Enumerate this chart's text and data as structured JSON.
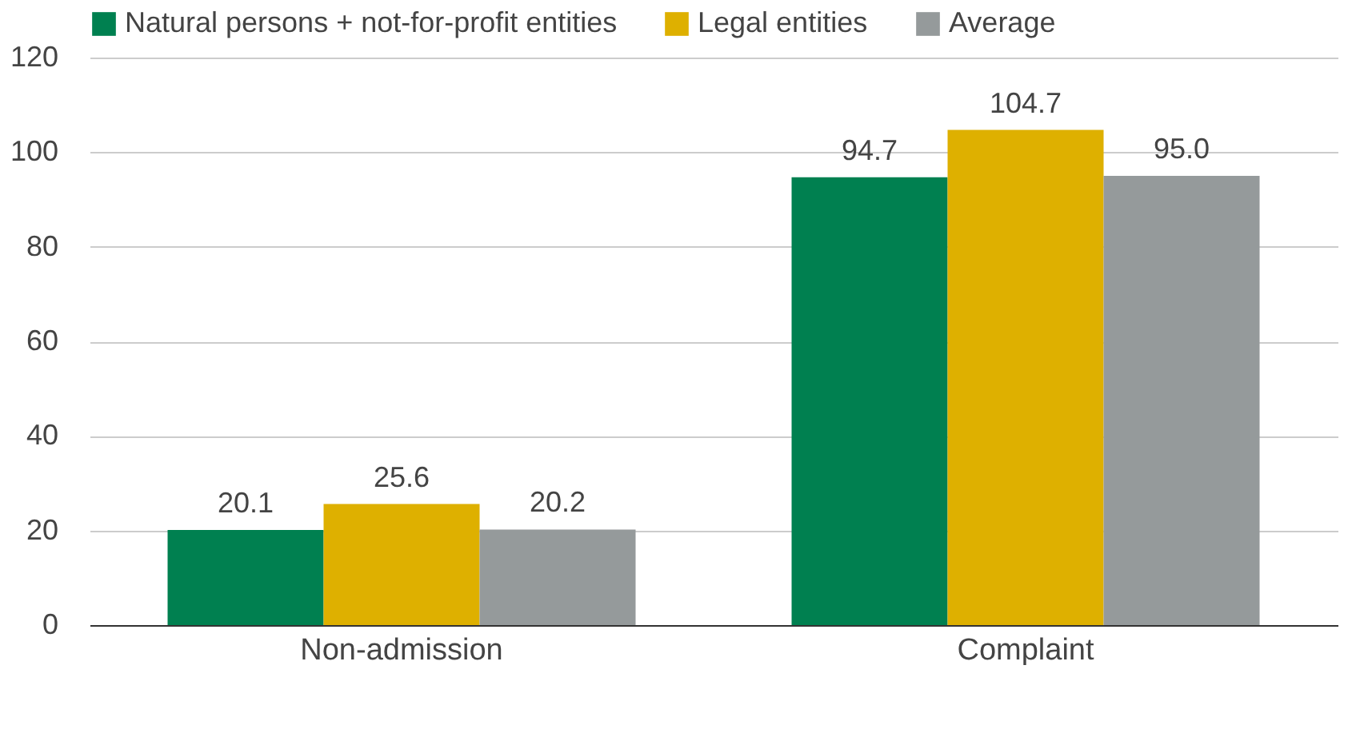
{
  "chart_data": {
    "type": "bar",
    "categories": [
      "Non-admission",
      "Complaint"
    ],
    "series": [
      {
        "name": "Natural persons + not-for-profit entities",
        "color": "#008050",
        "values": [
          20.1,
          94.7
        ],
        "value_labels": [
          "20.1",
          "94.7"
        ]
      },
      {
        "name": "Legal entities",
        "color": "#deb000",
        "values": [
          25.6,
          104.7
        ],
        "value_labels": [
          "25.6",
          "104.7"
        ]
      },
      {
        "name": "Average",
        "color": "#959a9b",
        "values": [
          20.2,
          95.0
        ],
        "value_labels": [
          "20.2",
          "95.0"
        ]
      }
    ],
    "ylim": [
      0,
      120
    ],
    "yticks": [
      0,
      20,
      40,
      60,
      80,
      100,
      120
    ],
    "grid": "y",
    "legend": "top"
  }
}
